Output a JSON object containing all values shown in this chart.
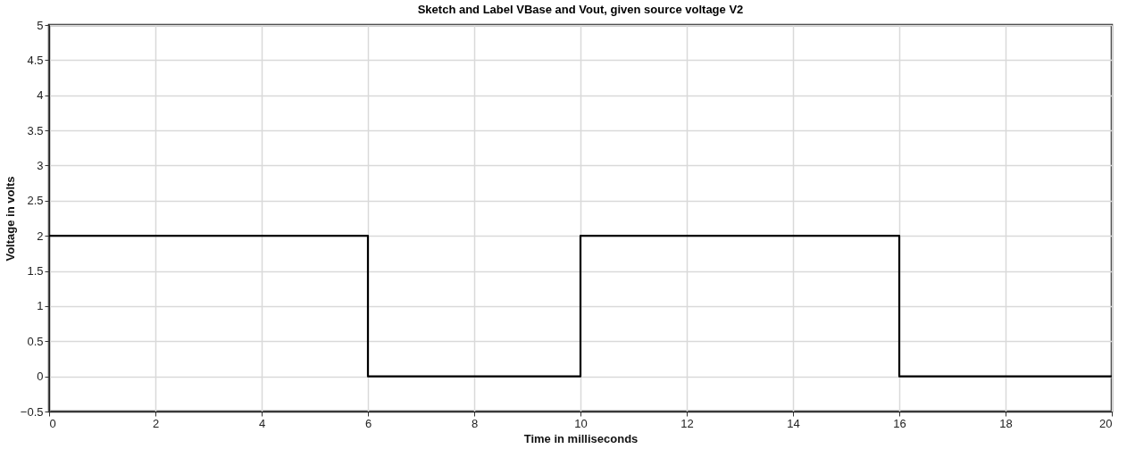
{
  "chart_data": {
    "type": "step",
    "title": "Sketch and Label VBase and Vout, given source voltage V2",
    "xlabel": "Time in milliseconds",
    "ylabel": "Voltage in volts",
    "x": [
      0,
      6,
      10,
      16,
      20
    ],
    "series": [
      {
        "color": "#000000",
        "values": [
          2,
          0,
          2,
          0,
          0
        ]
      }
    ],
    "xlim": [
      0,
      20
    ],
    "xticks": [
      0,
      2,
      4,
      6,
      8,
      10,
      12,
      14,
      16,
      18,
      20
    ],
    "ylim": [
      -0.5,
      5
    ],
    "yticks": [
      -0.5,
      0,
      0.5,
      1,
      1.5,
      2,
      2.5,
      3,
      3.5,
      4,
      4.5,
      5
    ],
    "grid": true,
    "line_style": "solid",
    "marker": "none"
  }
}
